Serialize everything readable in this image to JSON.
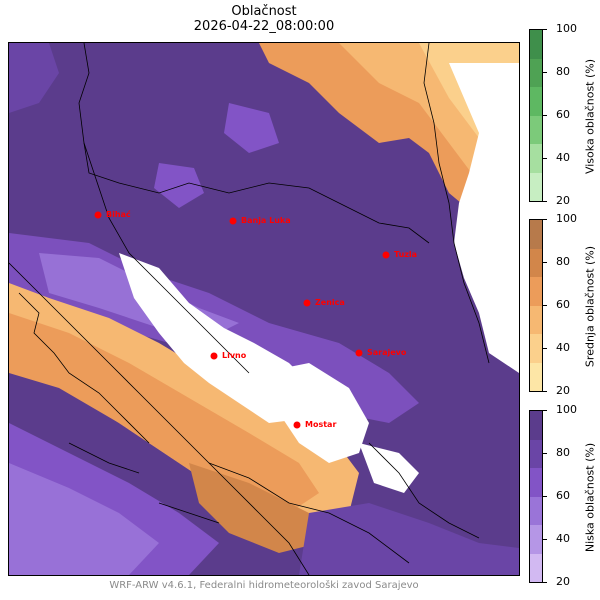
{
  "title": "Oblačnost",
  "datetime": "2026-04-22_08:00:00",
  "footer": "WRF-ARW v4.6.1, Federalni hidrometeorološki zavod Sarajevo",
  "cities": [
    {
      "name": "Bihać",
      "label": "Bihać"
    },
    {
      "name": "Banja Luka",
      "label": "Banja Luka"
    },
    {
      "name": "Tuzla",
      "label": "Tuzla"
    },
    {
      "name": "Zenica",
      "label": "Zenica"
    },
    {
      "name": "Livno",
      "label": "Livno"
    },
    {
      "name": "Sarajevo",
      "label": "Sarajevo"
    },
    {
      "name": "Mostar",
      "label": "Mostar"
    }
  ],
  "colorbars": [
    {
      "label": "Visoka oblačnost (%)",
      "ticks": [
        "100",
        "80",
        "60",
        "40",
        "20"
      ],
      "colors": [
        "#3f8f4b",
        "#4fa254",
        "#5eb862",
        "#7cca7a",
        "#a6dfa0",
        "#c7eec2"
      ]
    },
    {
      "label": "Srednja oblačnost (%)",
      "ticks": [
        "100",
        "80",
        "60",
        "40",
        "20"
      ],
      "colors": [
        "#b77a4b",
        "#d2864a",
        "#ec9c5a",
        "#f6b872",
        "#fbd08c",
        "#fde6a6"
      ]
    },
    {
      "label": "Niska oblačnost (%)",
      "ticks": [
        "100",
        "80",
        "60",
        "40",
        "20"
      ],
      "colors": [
        "#5b3c8c",
        "#6a45a6",
        "#8254c6",
        "#9a74d8",
        "#b596e6",
        "#d2b9f2"
      ]
    }
  ],
  "palette": {
    "city_dot": "#ff0000",
    "city_text": "#ff0000",
    "border_line": "#000000"
  }
}
